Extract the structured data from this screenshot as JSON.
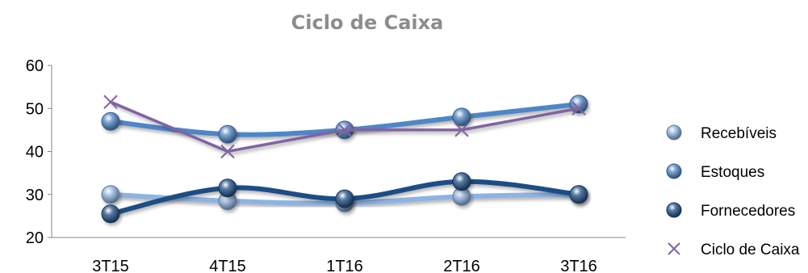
{
  "chart_data": {
    "type": "line",
    "title": "Ciclo de Caixa",
    "xlabel": "",
    "ylabel": "",
    "categories": [
      "3T15",
      "4T15",
      "1T16",
      "2T16",
      "3T16"
    ],
    "ylim": [
      20,
      60
    ],
    "yticks": [
      20,
      30,
      40,
      50,
      60
    ],
    "grid": false,
    "legend_position": "right",
    "series": [
      {
        "name": "Recebíveis",
        "values": [
          30,
          28.5,
          28,
          29.5,
          30
        ],
        "color": "#8db3e2",
        "marker": "sphere",
        "smooth": true
      },
      {
        "name": "Estoques",
        "values": [
          47,
          44,
          45,
          48,
          51
        ],
        "color": "#4f86c6",
        "marker": "sphere",
        "smooth": true
      },
      {
        "name": "Fornecedores",
        "values": [
          25.5,
          31.5,
          29,
          33,
          30
        ],
        "color": "#1f4e85",
        "marker": "sphere",
        "smooth": true
      },
      {
        "name": "Ciclo de Caixa",
        "values": [
          51.5,
          40,
          45,
          45,
          50
        ],
        "color": "#8064a2",
        "marker": "x",
        "smooth": false
      }
    ]
  }
}
